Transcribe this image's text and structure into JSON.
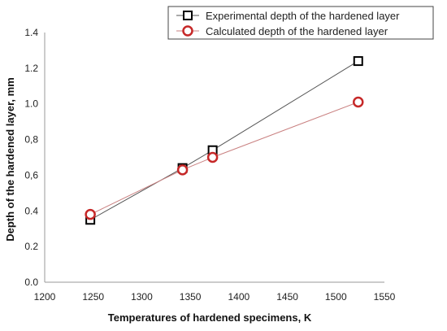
{
  "chart_data": {
    "type": "line",
    "xlabel": "Temperatures of hardened specimens, K",
    "ylabel": "Depth of the hardened layer, mm",
    "xlim": [
      1200,
      1550
    ],
    "ylim": [
      0.0,
      1.4
    ],
    "x_ticks": [
      1200,
      1250,
      1300,
      1350,
      1400,
      1450,
      1500,
      1550
    ],
    "y_ticks": [
      0.0,
      0.2,
      0.4,
      0.6,
      0.8,
      1.0,
      1.2,
      1.4
    ],
    "y_tick_labels": [
      "0.0",
      "0.2",
      "0.4",
      "0,6",
      "0,8",
      "1.0",
      "1.2",
      "1.4"
    ],
    "grid": false,
    "legend_position": "top-right",
    "series": [
      {
        "name": "Experimental depth of the hardened layer",
        "marker": "square",
        "marker_color": "#000000",
        "line_color": "#555555",
        "x": [
          1247,
          1342,
          1373,
          1523
        ],
        "y": [
          0.35,
          0.64,
          0.74,
          1.24
        ]
      },
      {
        "name": "Calculated depth of the hardened layer",
        "marker": "circle",
        "marker_color": "#c62828",
        "line_color": "#c98080",
        "x": [
          1247,
          1342,
          1373,
          1523
        ],
        "y": [
          0.38,
          0.63,
          0.7,
          1.01
        ]
      }
    ]
  }
}
